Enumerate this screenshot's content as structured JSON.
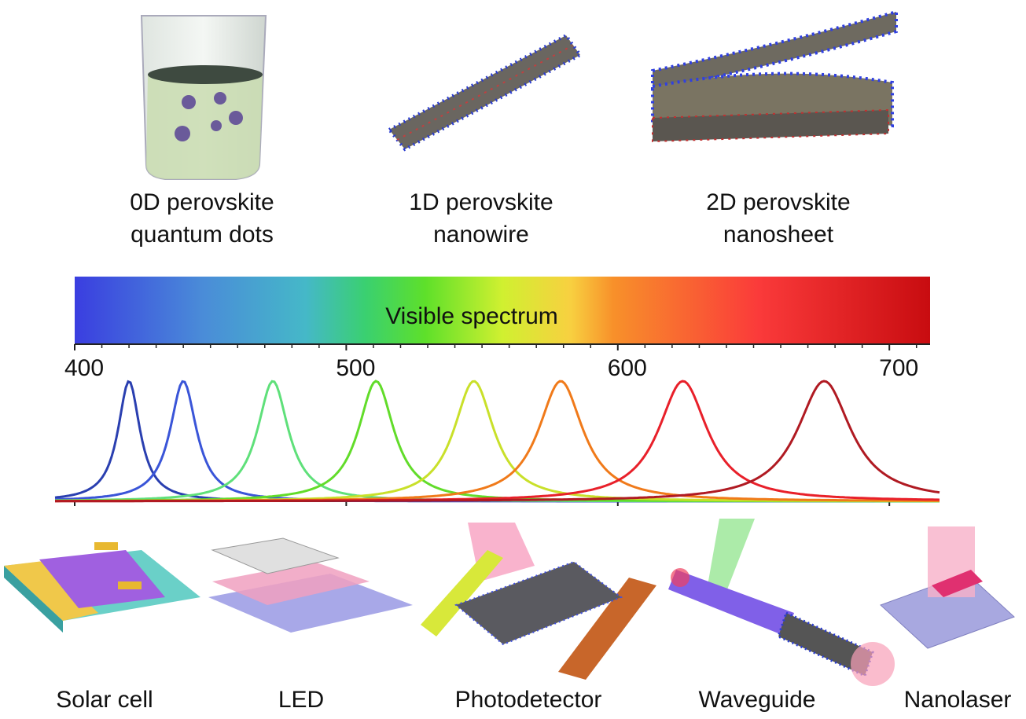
{
  "structures": [
    {
      "line1": "0D perovskite",
      "line2": "quantum dots"
    },
    {
      "line1": "1D perovskite",
      "line2": "nanowire"
    },
    {
      "line1": "2D perovskite",
      "line2": "nanosheet"
    }
  ],
  "spectrum": {
    "label": "Visible spectrum",
    "xlim": [
      400,
      715
    ],
    "xticks": [
      400,
      500,
      600,
      700
    ],
    "minor_ticks": [
      410,
      420,
      430,
      440,
      450,
      460,
      470,
      480,
      490,
      510,
      520,
      530,
      540,
      550,
      560,
      570,
      580,
      590,
      610,
      620,
      630,
      640,
      650,
      660,
      670,
      680,
      690,
      710
    ]
  },
  "peaks": [
    {
      "wavelength": 420,
      "color": "#2a3fb0"
    },
    {
      "wavelength": 440,
      "color": "#3a55d8"
    },
    {
      "wavelength": 473,
      "color": "#5fe07a"
    },
    {
      "wavelength": 511,
      "color": "#62dc2a"
    },
    {
      "wavelength": 547,
      "color": "#c9e02a"
    },
    {
      "wavelength": 579,
      "color": "#f07a1a"
    },
    {
      "wavelength": 624,
      "color": "#e8202a"
    },
    {
      "wavelength": 676,
      "color": "#b01a22"
    }
  ],
  "applications": [
    "Solar cell",
    "LED",
    "Photodetector",
    "Waveguide",
    "Nanolaser"
  ]
}
